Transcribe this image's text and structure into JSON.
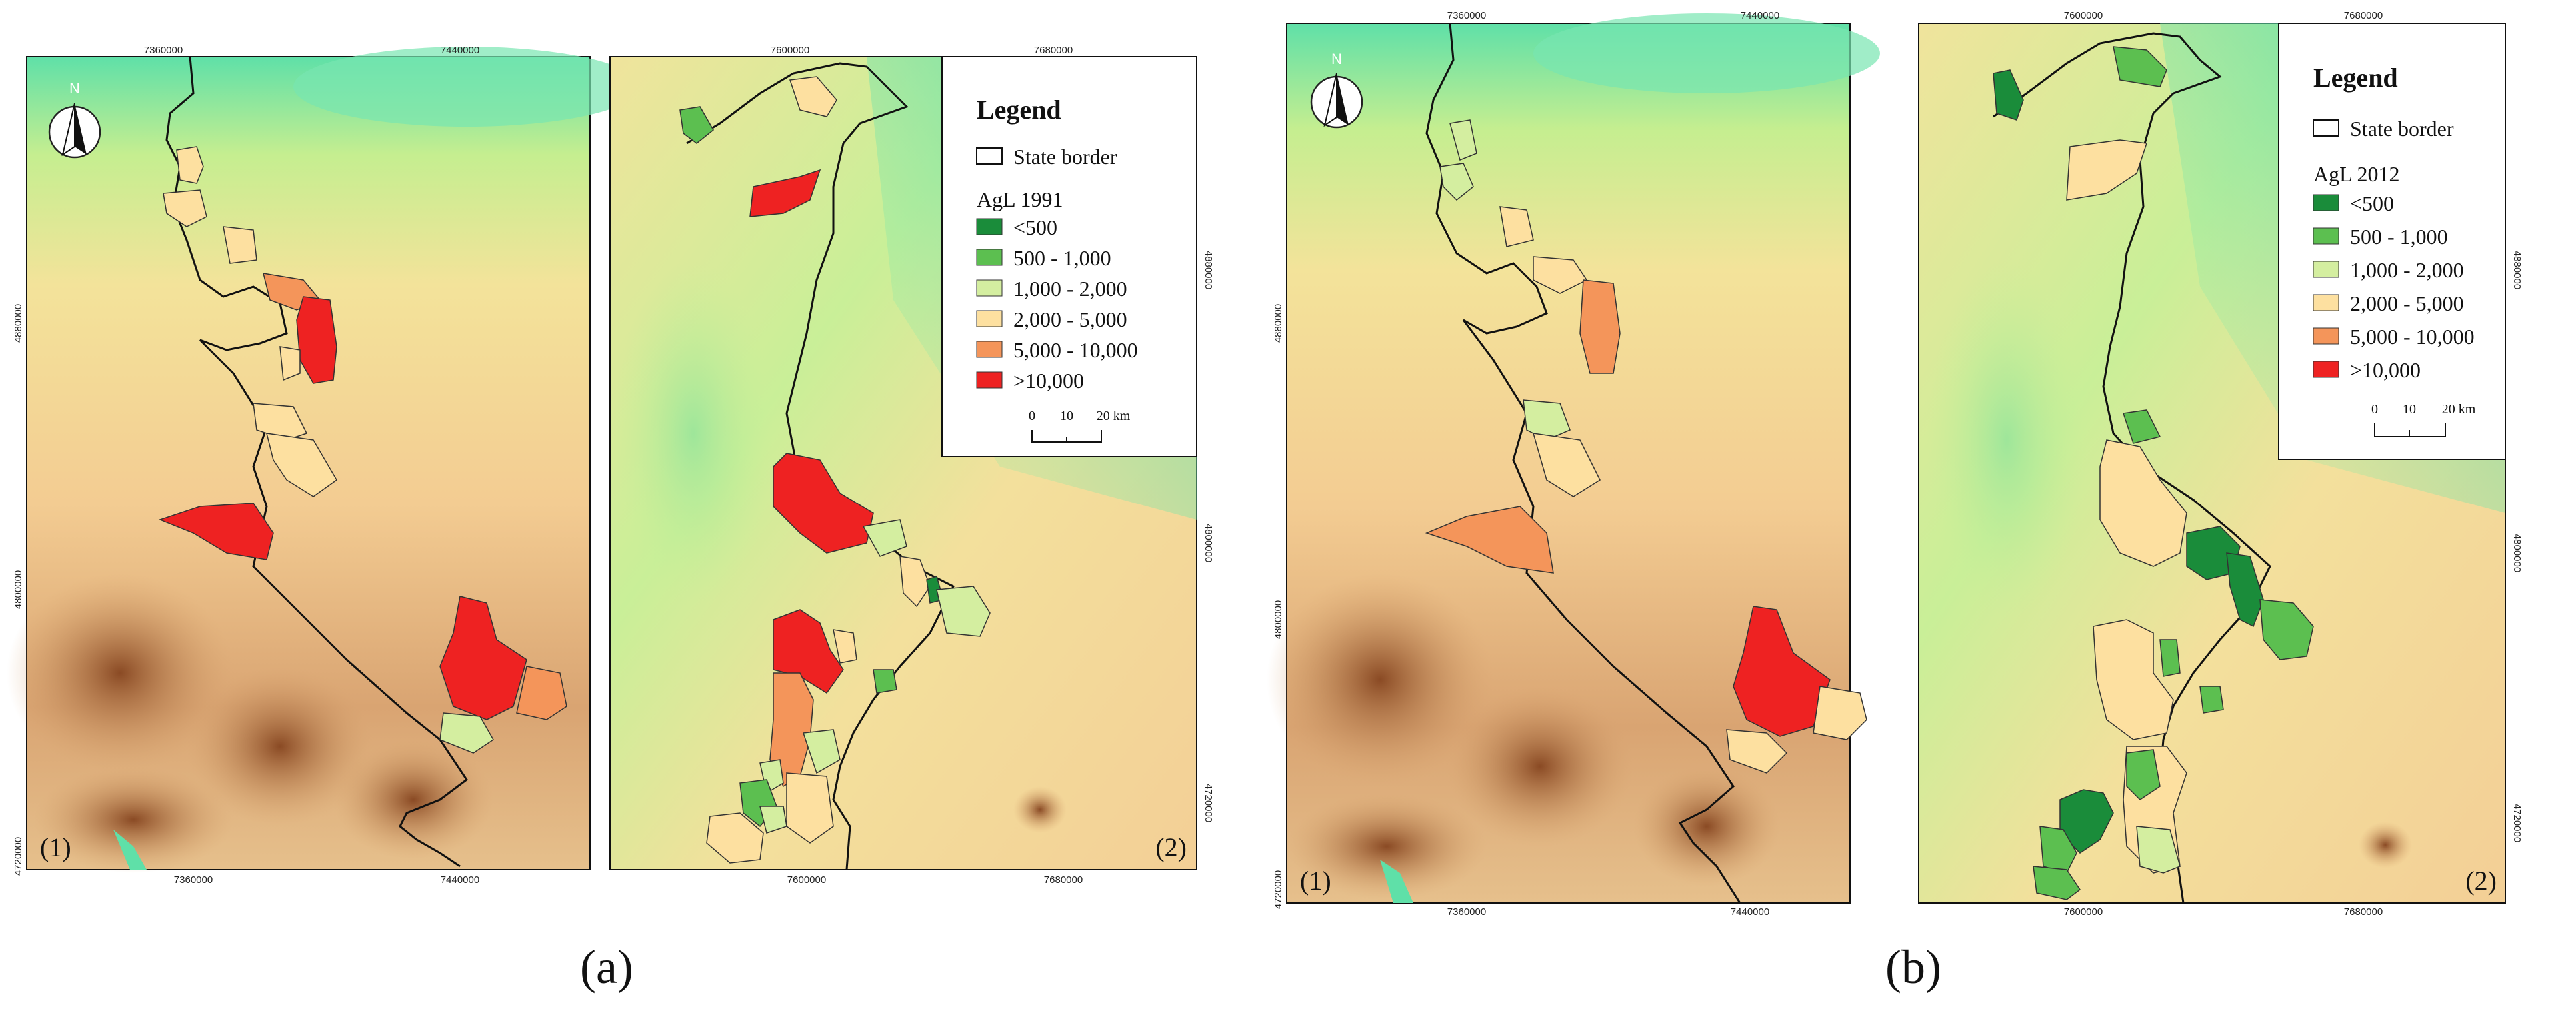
{
  "figure": {
    "caption_a": "(a)",
    "caption_b": "(b)"
  },
  "panels": [
    {
      "id": "a1",
      "panel_label": "(1)",
      "top_ticks": [
        "7360000",
        "7440000"
      ],
      "bottom_ticks": [
        "7360000",
        "7440000"
      ],
      "left_ticks": [
        "4880000",
        "4800000",
        "4720000"
      ],
      "has_north_arrow": true,
      "north_label": "N"
    },
    {
      "id": "a2",
      "panel_label": "(2)",
      "top_ticks": [
        "7600000",
        "7680000"
      ],
      "bottom_ticks": [
        "7600000",
        "7680000"
      ],
      "right_ticks": [
        "4880000",
        "4800000",
        "4720000"
      ]
    },
    {
      "id": "b1",
      "panel_label": "(1)",
      "top_ticks": [
        "7360000",
        "7440000"
      ],
      "bottom_ticks": [
        "7360000",
        "7440000"
      ],
      "left_ticks": [
        "4880000",
        "4800000",
        "4720000"
      ],
      "has_north_arrow": true,
      "north_label": "N"
    },
    {
      "id": "b2",
      "panel_label": "(2)",
      "top_ticks": [
        "7600000",
        "7680000"
      ],
      "bottom_ticks": [
        "7600000",
        "7680000"
      ],
      "right_ticks": [
        "4880000",
        "4800000",
        "4720000"
      ]
    }
  ],
  "legends": [
    {
      "id": "a",
      "title": "Legend",
      "border_label": "State border",
      "layer_title": "AgL 1991",
      "classes": [
        "<500",
        "500 - 1,000",
        "1,000 - 2,000",
        "2,000 - 5,000",
        "5,000 - 10,000",
        ">10,000"
      ],
      "scale_labels": [
        "0",
        "10",
        "20 km"
      ]
    },
    {
      "id": "b",
      "title": "Legend",
      "border_label": "State border",
      "layer_title": "AgL 2012",
      "classes": [
        "<500",
        "500 - 1,000",
        "1,000 - 2,000",
        "2,000 - 5,000",
        "5,000 - 10,000",
        ">10,000"
      ],
      "scale_labels": [
        "0",
        "10",
        "20 km"
      ]
    }
  ],
  "colors": {
    "class_colors": [
      "#1a8c3a",
      "#5cbf50",
      "#d4eea0",
      "#fde0a0",
      "#f4955a",
      "#ee2222"
    ],
    "terrain_low": "#5fe0a8",
    "terrain_mid": "#d8f08e",
    "terrain_high": "#f5cf94",
    "terrain_peak": "#9c5a32",
    "border": "#111111"
  }
}
